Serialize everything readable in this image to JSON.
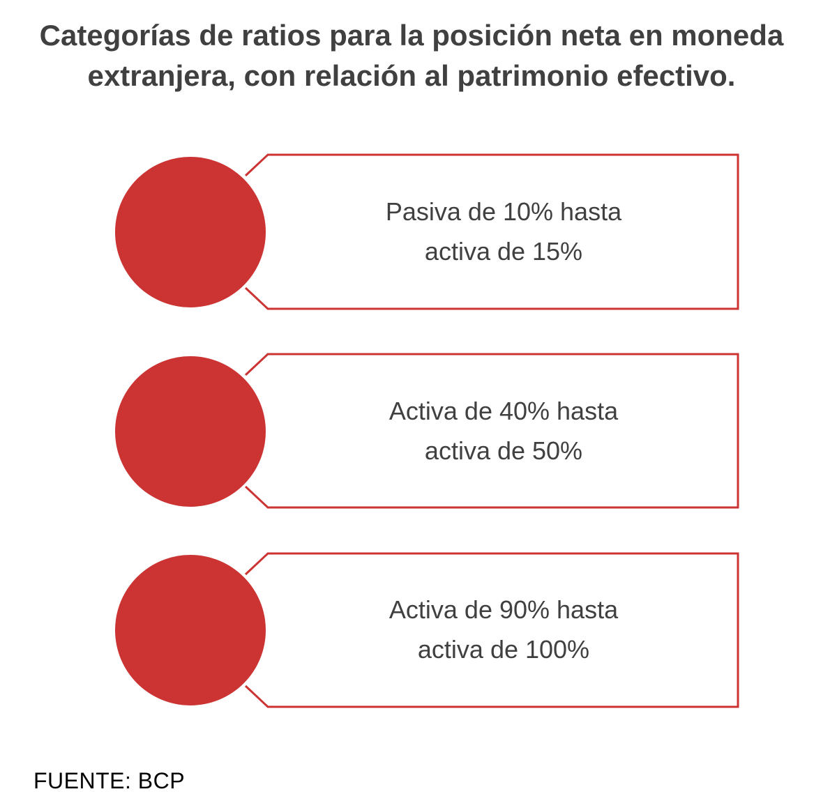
{
  "title": "Categorías de ratios para la posición neta en moneda extranjera, con relación al patrimonio efectivo.",
  "colors": {
    "accent": "#cc3333",
    "text": "#404040",
    "source_text": "#000000"
  },
  "items": [
    {
      "line1": "Pasiva de 10% hasta",
      "line2": "activa de 15%"
    },
    {
      "line1": "Activa de 40% hasta",
      "line2": "activa de 50%"
    },
    {
      "line1": "Activa de 90% hasta",
      "line2": "activa de 100%"
    }
  ],
  "source": "FUENTE: BCP"
}
